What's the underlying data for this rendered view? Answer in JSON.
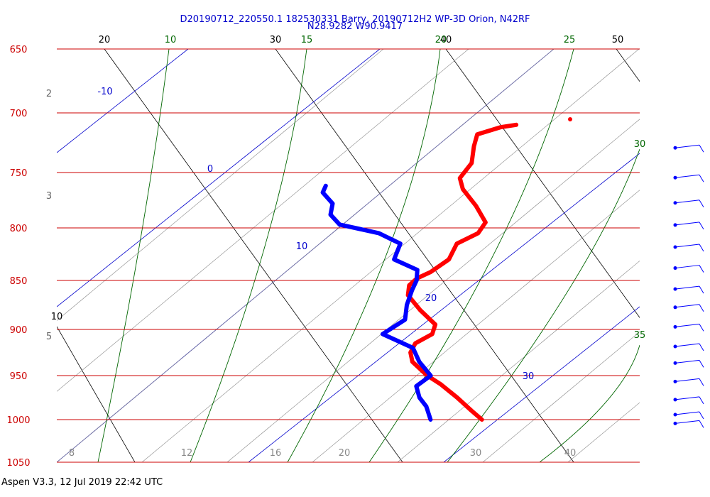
{
  "header": {
    "title": "D20190712_220550.1 182530331 Barry, 20190712H2 WP-3D Orion, N42RF",
    "location": "N28.9282 W90.9417"
  },
  "footer": {
    "text": "Aspen V3.3, 12 Jul 2019  22:42 UTC"
  },
  "chart_data": {
    "type": "skew-t",
    "y_axis_ticks": [
      "650",
      "700",
      "750",
      "800",
      "850",
      "900",
      "950",
      "1000",
      "1050"
    ],
    "y_axis_values": [
      650,
      700,
      750,
      800,
      850,
      900,
      950,
      1000,
      1050
    ],
    "x_axis_ticks": [
      "20",
      "30",
      "40",
      "50"
    ],
    "dry_adiabat_labels": [
      "20",
      "30",
      "40",
      "50",
      "10"
    ],
    "moist_adiabat_labels": [
      "10",
      "15",
      "20",
      "25",
      "30",
      "35"
    ],
    "isotherm_labels": [
      "-10",
      "0",
      "10",
      "20",
      "30"
    ],
    "mixing_ratio_labels": [
      "8",
      "12",
      "16",
      "20",
      "30",
      "40"
    ],
    "height_labels": [
      "2",
      "3",
      "5"
    ],
    "temperature_series": {
      "name": "",
      "color": "#ff0000",
      "points": [
        [
          1000,
          29.5
        ],
        [
          990,
          29.2
        ],
        [
          975,
          28.8
        ],
        [
          960,
          28.3
        ],
        [
          950,
          27.8
        ],
        [
          935,
          27.4
        ],
        [
          925,
          27.6
        ],
        [
          915,
          28.2
        ],
        [
          905,
          29.5
        ],
        [
          895,
          30.0
        ],
        [
          880,
          29.6
        ],
        [
          865,
          29.4
        ],
        [
          855,
          29.8
        ],
        [
          848,
          30.5
        ],
        [
          842,
          31.5
        ],
        [
          830,
          33.0
        ],
        [
          815,
          34.0
        ],
        [
          805,
          35.6
        ],
        [
          795,
          36.4
        ],
        [
          780,
          36.4
        ],
        [
          765,
          36.2
        ],
        [
          755,
          36.4
        ],
        [
          742,
          37.6
        ],
        [
          728,
          38.3
        ],
        [
          718,
          38.9
        ],
        [
          712,
          40.5
        ],
        [
          710,
          41.5
        ]
      ]
    },
    "dewpoint_series": {
      "name": "",
      "color": "#0000ff",
      "points": [
        [
          1000,
          26.5
        ],
        [
          985,
          26.7
        ],
        [
          975,
          26.6
        ],
        [
          962,
          26.8
        ],
        [
          950,
          28.0
        ],
        [
          935,
          27.8
        ],
        [
          920,
          27.9
        ],
        [
          905,
          26.6
        ],
        [
          890,
          28.4
        ],
        [
          875,
          29.0
        ],
        [
          860,
          29.8
        ],
        [
          850,
          30.4
        ],
        [
          840,
          30.8
        ],
        [
          830,
          29.8
        ],
        [
          815,
          30.7
        ],
        [
          805,
          29.8
        ],
        [
          797,
          27.8
        ],
        [
          788,
          27.6
        ],
        [
          778,
          28.1
        ],
        [
          768,
          27.9
        ],
        [
          762,
          28.3
        ]
      ]
    },
    "wind_barbs": {
      "color": "#0000ff",
      "count": 15,
      "pressures": [
        715,
        740,
        762,
        782,
        802,
        822,
        842,
        860,
        880,
        900,
        918,
        938,
        958,
        975,
        985
      ]
    }
  }
}
